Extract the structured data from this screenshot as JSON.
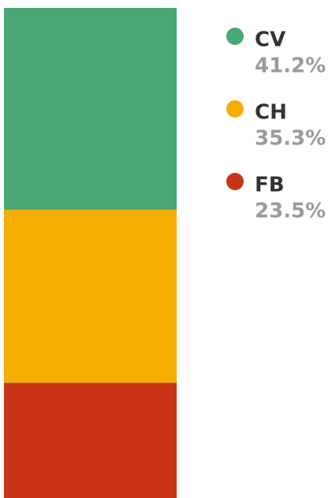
{
  "chart_data": {
    "type": "stacked_bar",
    "categories": [
      null
    ],
    "legend": "right",
    "series": [
      {
        "name": "CV",
        "color": "#4aa776",
        "values": [
          41.2
        ],
        "value_labels": [
          "41.2%"
        ]
      },
      {
        "name": "CH",
        "color": "#f4ae00",
        "values": [
          35.3
        ],
        "value_labels": [
          "35.3%"
        ]
      },
      {
        "name": "FB",
        "color": "#c93418",
        "values": [
          23.5
        ],
        "value_labels": [
          "23.5%"
        ]
      }
    ]
  }
}
